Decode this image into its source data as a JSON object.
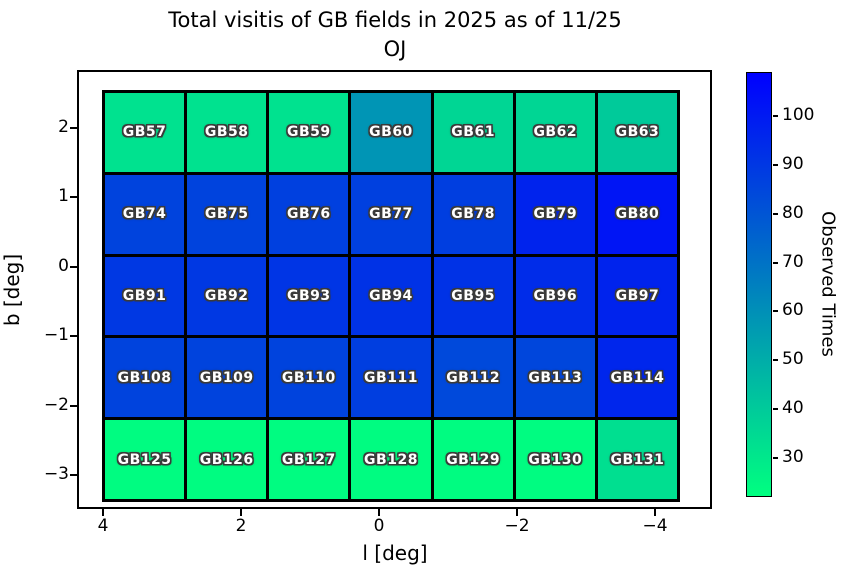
{
  "title": {
    "line1": "Total visitis of GB fields in 2025 as of 11/25",
    "line2": "OJ"
  },
  "chart_data": {
    "type": "heatmap",
    "title": "Total visitis of GB fields in 2025 as of 11/25 OJ",
    "xlabel": "l [deg]",
    "ylabel": "b [deg]",
    "x_ticks": [
      {
        "label": "4",
        "value": 4
      },
      {
        "label": "2",
        "value": 2
      },
      {
        "label": "0",
        "value": 0
      },
      {
        "label": "−2",
        "value": -2
      },
      {
        "label": "−4",
        "value": -4
      }
    ],
    "y_ticks": [
      {
        "label": "2",
        "value": 2
      },
      {
        "label": "1",
        "value": 1
      },
      {
        "label": "0",
        "value": 0
      },
      {
        "label": "−1",
        "value": -1
      },
      {
        "label": "−2",
        "value": -2
      },
      {
        "label": "−3",
        "value": -3
      }
    ],
    "xlim": [
      4.4,
      -4.6
    ],
    "ylim": [
      -3.45,
      2.85
    ],
    "grid_on": false,
    "colorbar": {
      "label": "Observed Times",
      "ticks": [
        30,
        40,
        50,
        60,
        70,
        80,
        90,
        100
      ],
      "vmin": 22,
      "vmax": 109,
      "colormap": "winter_r",
      "color_min": "#00ff80",
      "color_max": "#0000ff"
    },
    "rows": [
      {
        "b_center": 2.05,
        "cells": [
          {
            "label": "GB57",
            "value": 32
          },
          {
            "label": "GB58",
            "value": 32
          },
          {
            "label": "GB59",
            "value": 32
          },
          {
            "label": "GB60",
            "value": 58
          },
          {
            "label": "GB61",
            "value": 36
          },
          {
            "label": "GB62",
            "value": 36
          },
          {
            "label": "GB63",
            "value": 40
          }
        ]
      },
      {
        "b_center": 0.85,
        "cells": [
          {
            "label": "GB74",
            "value": 86
          },
          {
            "label": "GB75",
            "value": 86
          },
          {
            "label": "GB76",
            "value": 87
          },
          {
            "label": "GB77",
            "value": 87
          },
          {
            "label": "GB78",
            "value": 88
          },
          {
            "label": "GB79",
            "value": 97
          },
          {
            "label": "GB80",
            "value": 102
          }
        ]
      },
      {
        "b_center": -0.35,
        "cells": [
          {
            "label": "GB91",
            "value": 90
          },
          {
            "label": "GB92",
            "value": 90
          },
          {
            "label": "GB93",
            "value": 91
          },
          {
            "label": "GB94",
            "value": 92
          },
          {
            "label": "GB95",
            "value": 92
          },
          {
            "label": "GB96",
            "value": 94
          },
          {
            "label": "GB97",
            "value": 97
          }
        ]
      },
      {
        "b_center": -1.55,
        "cells": [
          {
            "label": "GB108",
            "value": 86
          },
          {
            "label": "GB109",
            "value": 86
          },
          {
            "label": "GB110",
            "value": 86
          },
          {
            "label": "GB111",
            "value": 88
          },
          {
            "label": "GB112",
            "value": 84
          },
          {
            "label": "GB113",
            "value": 85
          },
          {
            "label": "GB114",
            "value": 96
          }
        ]
      },
      {
        "b_center": -2.75,
        "cells": [
          {
            "label": "GB125",
            "value": 23
          },
          {
            "label": "GB126",
            "value": 23
          },
          {
            "label": "GB127",
            "value": 23
          },
          {
            "label": "GB128",
            "value": 23
          },
          {
            "label": "GB129",
            "value": 23
          },
          {
            "label": "GB130",
            "value": 23
          },
          {
            "label": "GB131",
            "value": 33
          }
        ]
      }
    ]
  }
}
